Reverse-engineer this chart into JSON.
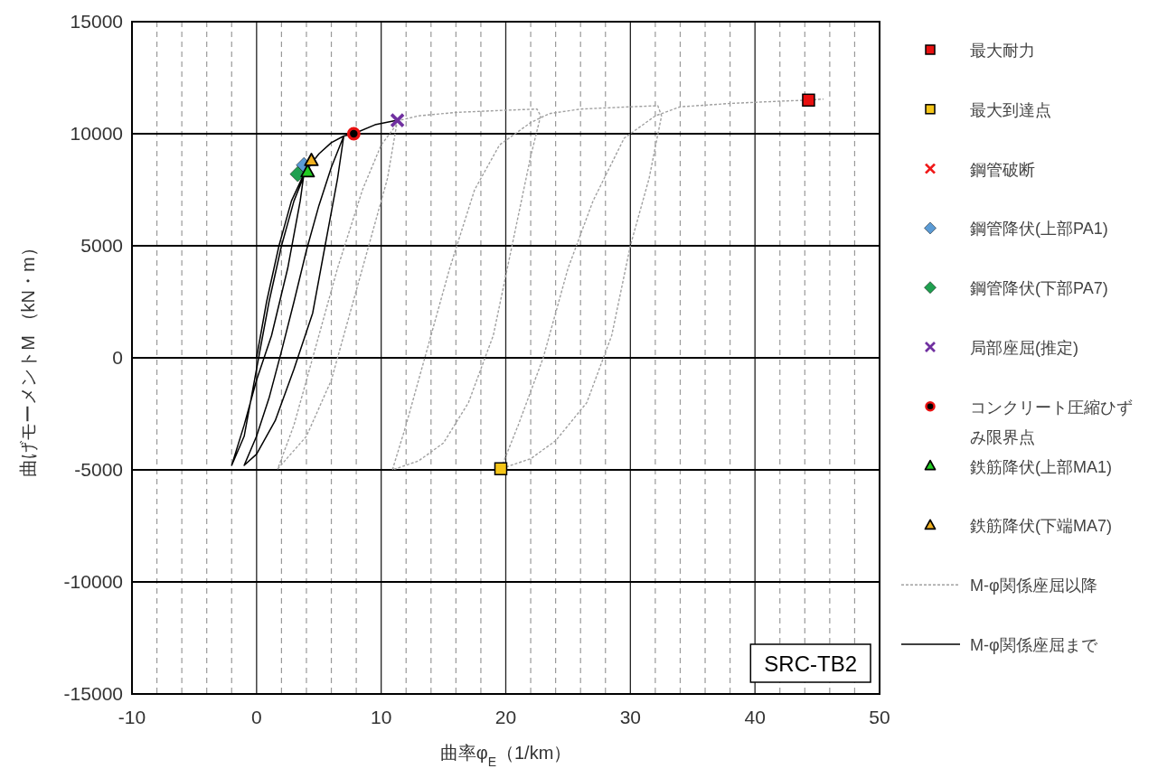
{
  "chart_data": {
    "type": "scatter",
    "xlabel": "曲率φ$_{E}$（1/km）",
    "ylabel": "曲げモーメントM （kN・m）",
    "xlim": [
      -10,
      50
    ],
    "xticks": [
      -10,
      0,
      10,
      20,
      30,
      40,
      50
    ],
    "ylim": [
      -15000,
      15000
    ],
    "yticks": [
      -15000,
      -10000,
      -5000,
      0,
      5000,
      10000,
      15000
    ],
    "grid": true,
    "legend": "right",
    "annotations": [
      "SRC-TB2"
    ],
    "series": [
      {
        "name": "最大耐力",
        "marker": "square",
        "color": "#e81010",
        "x": [
          44.3
        ],
        "values": [
          11500
        ]
      },
      {
        "name": "最大到達点",
        "marker": "square",
        "color": "#f5c518",
        "x": [
          19.6
        ],
        "values": [
          -4950
        ]
      },
      {
        "name": "鋼管破断",
        "marker": "cross",
        "color": "#f01818"
      },
      {
        "name": "鋼管降伏(上部PA1)",
        "marker": "diamond",
        "color": "#5b9bd5",
        "x": [
          3.8
        ],
        "values": [
          8600
        ]
      },
      {
        "name": "鋼管降伏(下部PA7)",
        "marker": "diamond",
        "color": "#1fa050",
        "x": [
          3.3
        ],
        "values": [
          8200
        ]
      },
      {
        "name": "局部座屈(推定)",
        "marker": "cross",
        "color": "#7030a0",
        "x": [
          11.3
        ],
        "values": [
          10600
        ]
      },
      {
        "name": "コンクリート圧縮ひずみ限界点",
        "marker": "circle",
        "color": "#e81010",
        "x": [
          7.8
        ],
        "values": [
          10000
        ]
      },
      {
        "name": "鉄筋降伏(上部MA1)",
        "marker": "triangle",
        "color": "#22cc22",
        "x": [
          4.1
        ],
        "values": [
          8300
        ]
      },
      {
        "name": "鉄筋降伏(下端MA7)",
        "marker": "triangle",
        "color": "#f0b020",
        "x": [
          4.4
        ],
        "values": [
          8800
        ]
      },
      {
        "name": "M-φ関係座屈以降",
        "type": "line",
        "line_style": "dotted",
        "color": "#a0a0a0",
        "x": [
          11.3,
          10.5,
          9,
          7.5,
          6,
          4,
          1.7,
          3,
          4.5,
          6.5,
          8.5,
          10,
          11.5,
          13,
          16,
          20,
          22.5,
          22.8,
          22,
          20.5,
          19,
          17,
          15,
          13,
          10.9,
          12,
          13.5,
          15.5,
          17.5,
          19.5,
          22,
          23.5,
          26,
          30,
          32.2,
          32.5,
          31.5,
          30,
          28.5,
          26.5,
          24,
          22,
          19.6,
          21,
          23,
          25,
          27,
          29.5,
          32,
          34,
          38,
          42,
          44.3,
          45.5
        ],
        "values": [
          10600,
          8000,
          5000,
          2000,
          -1000,
          -3500,
          -4950,
          -3000,
          0,
          4000,
          7500,
          9500,
          10600,
          10800,
          10950,
          11050,
          11100,
          10800,
          9000,
          5000,
          1000,
          -2000,
          -3800,
          -4600,
          -5000,
          -3000,
          0,
          4000,
          7500,
          9500,
          10500,
          10900,
          11100,
          11200,
          11250,
          10800,
          8000,
          5000,
          1000,
          -2000,
          -3700,
          -4500,
          -4950,
          -3000,
          0,
          4000,
          7000,
          9800,
          10800,
          11200,
          11350,
          11450,
          11500,
          11550
        ]
      },
      {
        "name": "M-φ関係座屈まで",
        "type": "line",
        "line_style": "solid",
        "color": "#000000",
        "x": [
          0,
          0.8,
          1.8,
          2.8,
          3.8,
          3.5,
          2.5,
          1.2,
          0,
          -1,
          -2,
          -1,
          0,
          1,
          2,
          3,
          4,
          5,
          6,
          7,
          6.5,
          5.5,
          4.5,
          3,
          1.5,
          0,
          -1,
          0,
          1,
          2,
          3,
          4,
          5,
          6,
          7,
          7.8,
          9.5,
          11.3
        ],
        "values": [
          0,
          2500,
          5000,
          7000,
          8200,
          7000,
          4000,
          1000,
          -1000,
          -3000,
          -4800,
          -3500,
          -500,
          2500,
          5000,
          7000,
          8400,
          9100,
          9600,
          9900,
          8000,
          5000,
          2000,
          -500,
          -2800,
          -4300,
          -4800,
          -3500,
          -1800,
          300,
          2500,
          4800,
          6800,
          8500,
          9900,
          10000,
          10400,
          10600
        ]
      }
    ]
  }
}
